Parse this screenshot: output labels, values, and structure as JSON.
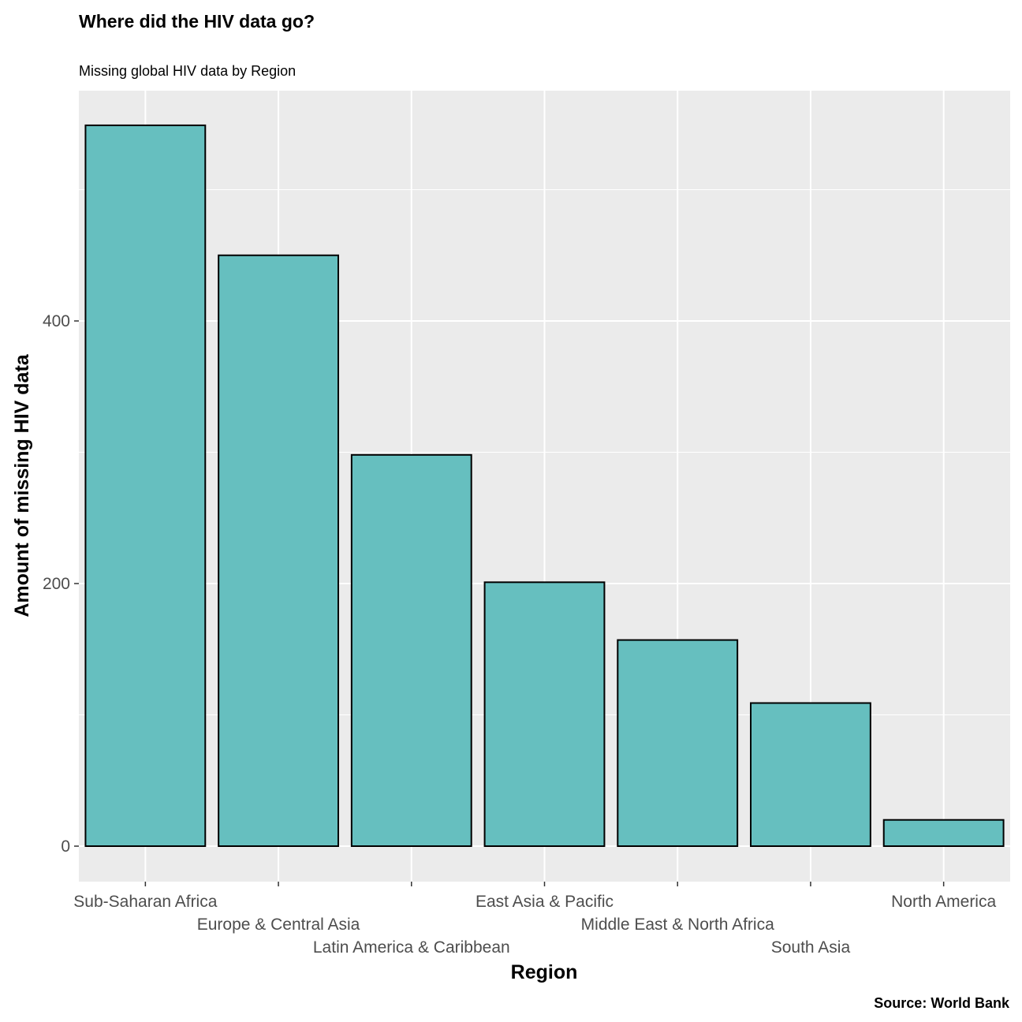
{
  "chart_data": {
    "type": "bar",
    "title": "Where did the HIV data go?",
    "subtitle": "Missing global HIV data by Region",
    "caption": "Source: World Bank",
    "xlabel": "Region",
    "ylabel": "Amount of missing HIV data",
    "categories": [
      "Sub-Saharan Africa",
      "Europe & Central Asia",
      "Latin America & Caribbean",
      "East Asia & Pacific",
      "Middle East & North Africa",
      "South Asia",
      "North America"
    ],
    "values": [
      549,
      450,
      298,
      201,
      157,
      109,
      20
    ],
    "ylim": [
      -26,
      576
    ],
    "y_ticks": [
      0,
      200,
      400
    ],
    "y_minor_ticks": [
      100,
      300,
      500
    ],
    "grid": true,
    "legend": "none",
    "colors": {
      "bar_fill": "#66BFBF",
      "bar_stroke": "#000000",
      "panel_background": "#EBEBEB",
      "grid": "#FFFFFF",
      "tick_text": "#4D4D4D"
    }
  }
}
